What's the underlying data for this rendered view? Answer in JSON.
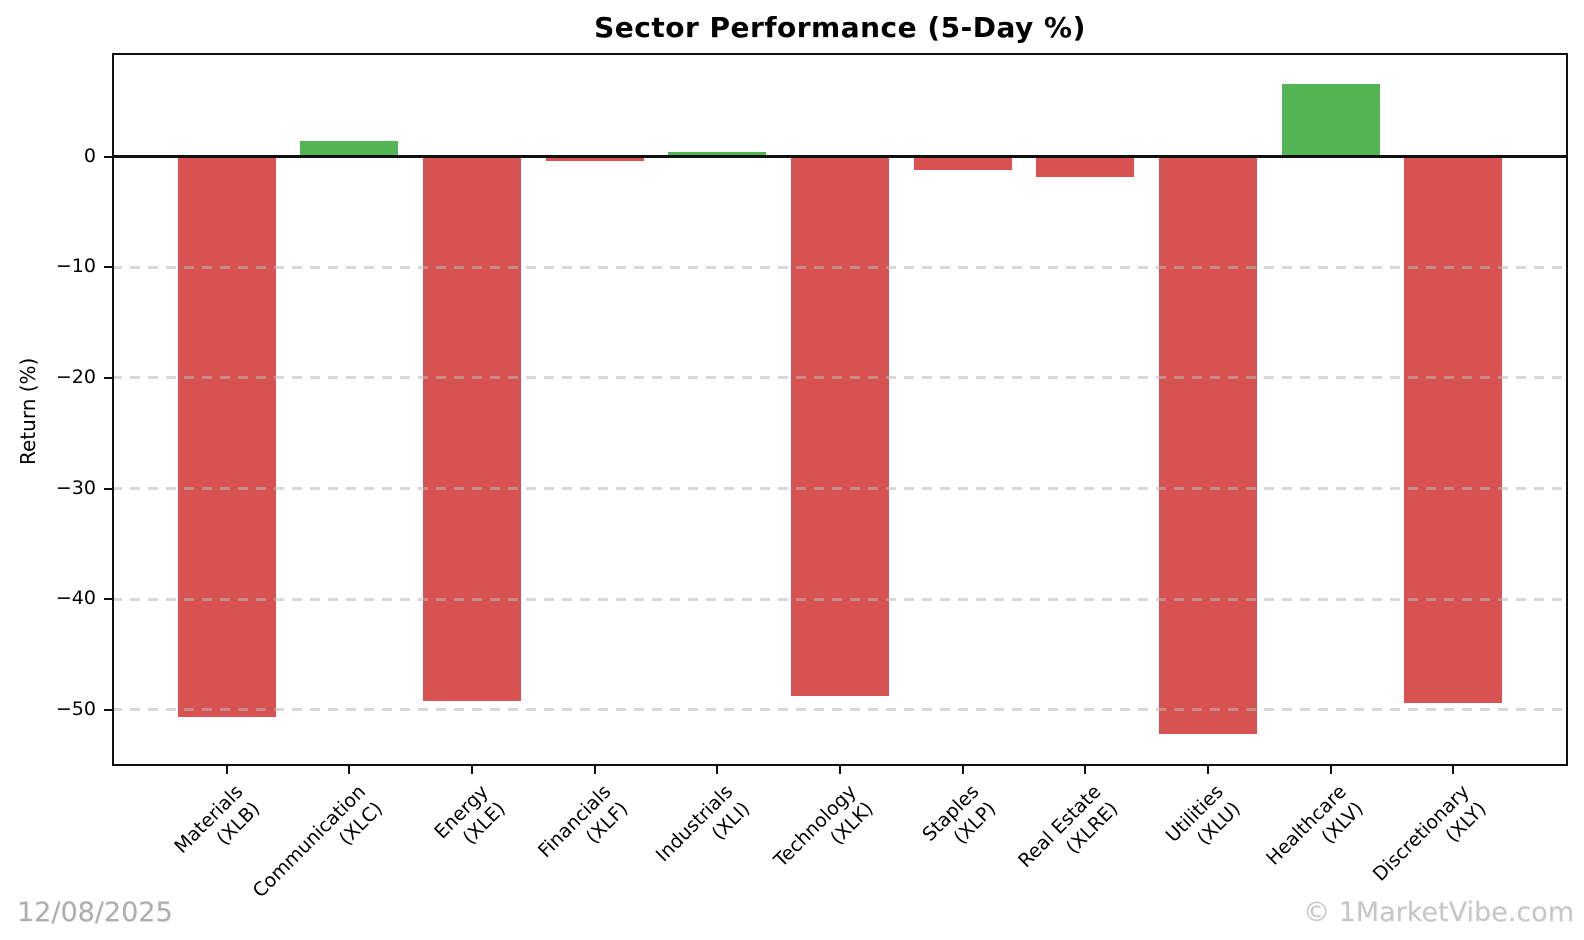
{
  "chart_data": {
    "type": "bar",
    "title": "Sector Performance (5-Day %)",
    "xlabel": "",
    "ylabel": "Return (%)",
    "categories": [
      {
        "name": "Materials",
        "ticker": "(XLB)"
      },
      {
        "name": "Communication",
        "ticker": "(XLC)"
      },
      {
        "name": "Energy",
        "ticker": "(XLE)"
      },
      {
        "name": "Financials",
        "ticker": "(XLF)"
      },
      {
        "name": "Industrials",
        "ticker": "(XLI)"
      },
      {
        "name": "Technology",
        "ticker": "(XLK)"
      },
      {
        "name": "Staples",
        "ticker": "(XLP)"
      },
      {
        "name": "Real Estate",
        "ticker": "(XLRE)"
      },
      {
        "name": "Utilities",
        "ticker": "(XLU)"
      },
      {
        "name": "Healthcare",
        "ticker": "(XLV)"
      },
      {
        "name": "Discretionary",
        "ticker": "(XLY)"
      }
    ],
    "values": [
      -50.7,
      1.4,
      -49.2,
      -0.35,
      0.4,
      -48.8,
      -1.2,
      -1.8,
      -52.2,
      6.6,
      -49.4
    ],
    "yticks": [
      0,
      -10,
      -20,
      -30,
      -40,
      -50
    ],
    "ylim": [
      -55.1,
      9.4
    ],
    "bar_colors": {
      "positive": "#53b453",
      "negative": "#d95252"
    },
    "grid": {
      "axis": "y",
      "style": "dashed"
    },
    "legend": "none"
  },
  "footer": {
    "date": "12/08/2025",
    "watermark": "© 1MarketVibe.com"
  }
}
